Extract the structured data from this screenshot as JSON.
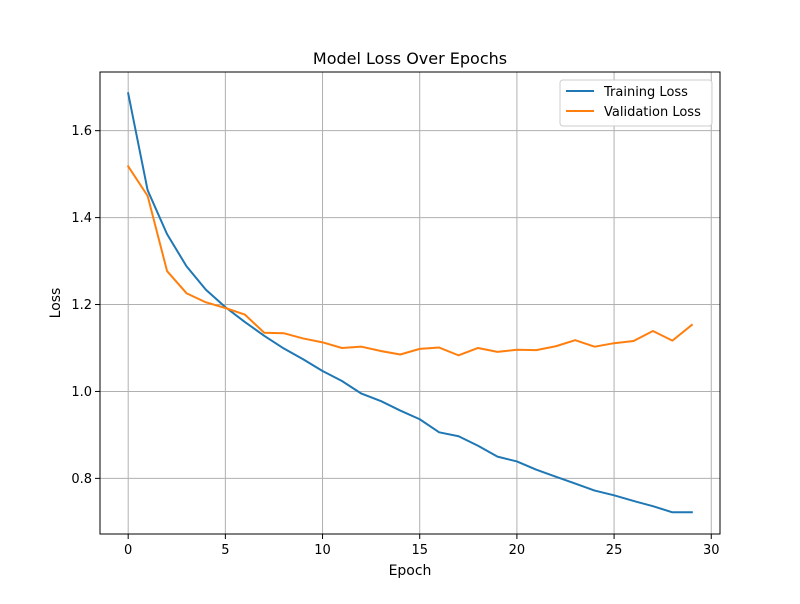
{
  "chart_data": {
    "type": "line",
    "title": "Model Loss Over Epochs",
    "xlabel": "Epoch",
    "ylabel": "Loss",
    "xlim": [
      -1.45,
      30.45
    ],
    "ylim": [
      0.672,
      1.735
    ],
    "xticks": [
      0,
      5,
      10,
      15,
      20,
      25,
      30
    ],
    "yticks": [
      0.8,
      1.0,
      1.2,
      1.4,
      1.6
    ],
    "grid": true,
    "legend_position": "top-right",
    "x": [
      0,
      1,
      2,
      3,
      4,
      5,
      6,
      7,
      8,
      9,
      10,
      11,
      12,
      13,
      14,
      15,
      16,
      17,
      18,
      19,
      20,
      21,
      22,
      23,
      24,
      25,
      26,
      27,
      28,
      29
    ],
    "series": [
      {
        "name": "Training Loss",
        "color": "#1f77b4",
        "values": [
          1.686,
          1.463,
          1.362,
          1.288,
          1.234,
          1.194,
          1.16,
          1.128,
          1.099,
          1.074,
          1.047,
          1.024,
          0.995,
          0.978,
          0.956,
          0.936,
          0.906,
          0.897,
          0.875,
          0.85,
          0.839,
          0.82,
          0.804,
          0.788,
          0.772,
          0.761,
          0.748,
          0.736,
          0.722,
          0.722
        ]
      },
      {
        "name": "Validation Loss",
        "color": "#ff7f0e",
        "values": [
          1.518,
          1.45,
          1.277,
          1.226,
          1.205,
          1.192,
          1.177,
          1.135,
          1.134,
          1.122,
          1.113,
          1.1,
          1.103,
          1.093,
          1.085,
          1.098,
          1.101,
          1.083,
          1.1,
          1.091,
          1.096,
          1.095,
          1.104,
          1.118,
          1.103,
          1.111,
          1.116,
          1.139,
          1.117,
          1.153
        ]
      }
    ]
  }
}
